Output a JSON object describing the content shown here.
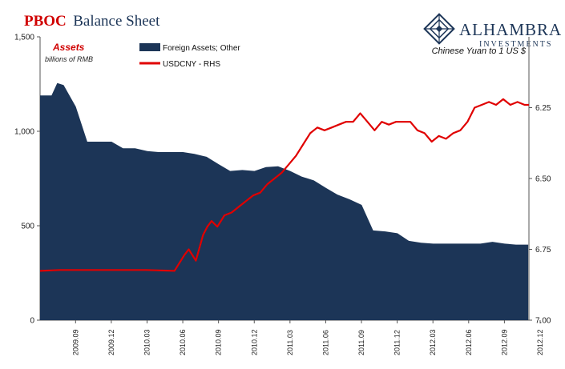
{
  "header": {
    "title_brand": "PBOC",
    "title_rest": "Balance Sheet",
    "logo_name": "ALHAMBRA",
    "logo_sub": "INVESTMENTS",
    "logo_icon": "diamond-lattice-icon"
  },
  "colors": {
    "area": "#1c3557",
    "line": "#e00000",
    "title_red": "#d00000"
  },
  "chart_data": {
    "type": "area",
    "title": "PBOC Balance Sheet",
    "left_axis": {
      "label": "Assets",
      "sublabel": "billions of RMB",
      "ylim": [
        0,
        1500
      ],
      "ticks": [
        0,
        500,
        1000,
        1500
      ],
      "tick_labels": [
        "0",
        "500",
        "1,000",
        "1,500"
      ]
    },
    "right_axis": {
      "label": "Chinese Yuan to 1 US $",
      "ylim": [
        7.0,
        6.0
      ],
      "inverted": true,
      "ticks": [
        7.0,
        6.75,
        6.5,
        6.25
      ],
      "tick_labels": [
        "7.00",
        "6.75",
        "6.50",
        "6.25"
      ]
    },
    "x_ticks": [
      "2009.09",
      "2009.12",
      "2010.03",
      "2010.06",
      "2010.09",
      "2010.12",
      "2011.03",
      "2011.06",
      "2011.09",
      "2011.12",
      "2012.03",
      "2012.06",
      "2012.09",
      "2012.12"
    ],
    "x_range": [
      2009.46,
      2012.88
    ],
    "legend": {
      "placement": "top-left"
    },
    "series": [
      {
        "name": "Foreign Assets; Other",
        "type": "area",
        "axis": "left",
        "x": [
          2009.46,
          2009.54,
          2009.58,
          2009.625,
          2009.71,
          2009.79,
          2009.875,
          2009.96,
          2010.04,
          2010.125,
          2010.21,
          2010.29,
          2010.375,
          2010.46,
          2010.54,
          2010.625,
          2010.71,
          2010.79,
          2010.875,
          2010.96,
          2011.04,
          2011.125,
          2011.21,
          2011.29,
          2011.375,
          2011.46,
          2011.54,
          2011.625,
          2011.71,
          2011.79,
          2011.875,
          2011.96,
          2012.04,
          2012.125,
          2012.21,
          2012.29,
          2012.375,
          2012.46,
          2012.54,
          2012.625,
          2012.71,
          2012.79,
          2012.875
        ],
        "values": [
          1190,
          1190,
          1255,
          1245,
          1130,
          945,
          945,
          945,
          910,
          910,
          895,
          890,
          890,
          890,
          880,
          865,
          825,
          790,
          795,
          790,
          810,
          815,
          790,
          760,
          740,
          700,
          665,
          640,
          610,
          475,
          470,
          460,
          420,
          410,
          405,
          405,
          405,
          405,
          405,
          415,
          405,
          400,
          400
        ]
      },
      {
        "name": "USDCNY - RHS",
        "type": "line",
        "axis": "right",
        "x": [
          2009.46,
          2009.6,
          2009.8,
          2010.0,
          2010.2,
          2010.4,
          2010.47,
          2010.5,
          2010.55,
          2010.6,
          2010.63,
          2010.66,
          2010.7,
          2010.75,
          2010.8,
          2010.85,
          2010.9,
          2010.95,
          2011.0,
          2011.05,
          2011.1,
          2011.15,
          2011.2,
          2011.25,
          2011.3,
          2011.35,
          2011.4,
          2011.45,
          2011.5,
          2011.55,
          2011.6,
          2011.65,
          2011.7,
          2011.75,
          2011.8,
          2011.85,
          2011.9,
          2011.95,
          2012.0,
          2012.05,
          2012.1,
          2012.15,
          2012.2,
          2012.25,
          2012.3,
          2012.35,
          2012.4,
          2012.45,
          2012.5,
          2012.55,
          2012.6,
          2012.65,
          2012.7,
          2012.75,
          2012.8,
          2012.85,
          2012.88
        ],
        "values": [
          6.826,
          6.823,
          6.823,
          6.823,
          6.823,
          6.826,
          6.77,
          6.75,
          6.79,
          6.7,
          6.67,
          6.65,
          6.67,
          6.63,
          6.62,
          6.6,
          6.58,
          6.56,
          6.55,
          6.52,
          6.5,
          6.48,
          6.45,
          6.42,
          6.38,
          6.34,
          6.32,
          6.33,
          6.32,
          6.31,
          6.3,
          6.3,
          6.27,
          6.3,
          6.33,
          6.3,
          6.31,
          6.3,
          6.3,
          6.3,
          6.33,
          6.34,
          6.37,
          6.35,
          6.36,
          6.34,
          6.33,
          6.3,
          6.25,
          6.24,
          6.23,
          6.24,
          6.22,
          6.24,
          6.23,
          6.24,
          6.24
        ]
      }
    ]
  }
}
